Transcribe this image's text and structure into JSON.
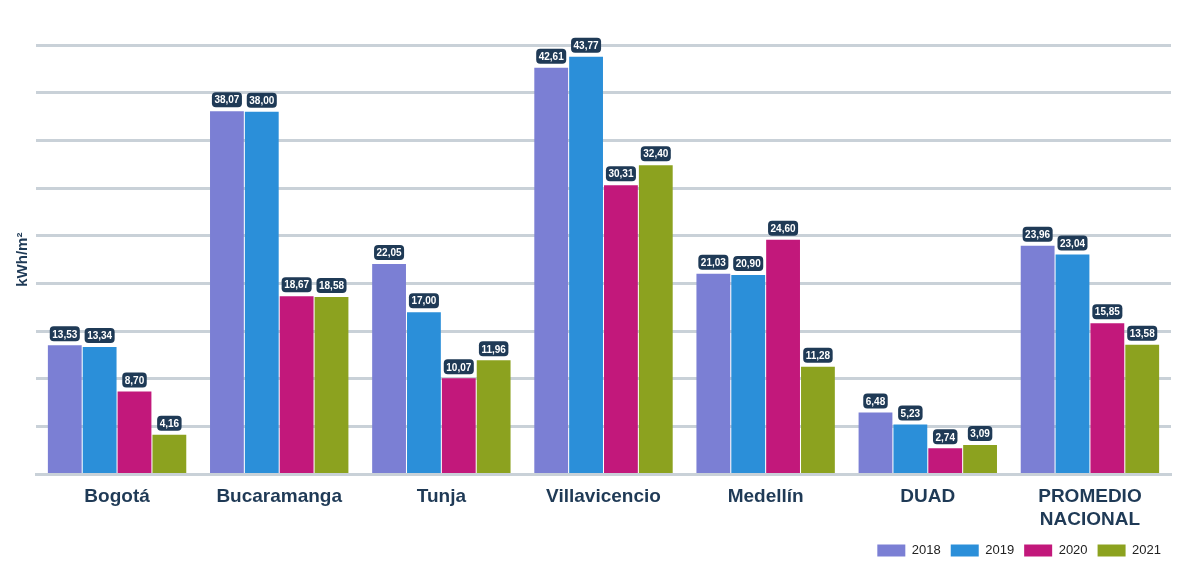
{
  "chart_data": {
    "type": "bar",
    "ylabel": "kWh/m²",
    "categories": [
      "Bogotá",
      "Bucaramanga",
      "Tunja",
      "Villavicencio",
      "Medellín",
      "DUAD",
      "PROMEDIO NACIONAL"
    ],
    "series": [
      {
        "name": "2018",
        "color": "#7b7fd4",
        "values": [
          13.53,
          38.07,
          22.05,
          42.61,
          21.03,
          6.48,
          23.96
        ],
        "value_labels": [
          "13,53",
          "38,07",
          "22,05",
          "42,61",
          "21,03",
          "6,48",
          "23,96"
        ]
      },
      {
        "name": "2019",
        "color": "#2b8fd9",
        "values": [
          13.34,
          38.0,
          17.0,
          43.77,
          20.9,
          5.23,
          23.04
        ],
        "value_labels": [
          "13,34",
          "38,00",
          "17,00",
          "43,77",
          "20,90",
          "5,23",
          "23,04"
        ]
      },
      {
        "name": "2020",
        "color": "#c2187b",
        "values": [
          8.7,
          18.67,
          10.07,
          30.31,
          24.6,
          2.74,
          15.85
        ],
        "value_labels": [
          "8,70",
          "18,67",
          "10,07",
          "30,31",
          "24,60",
          "2,74",
          "15,85"
        ]
      },
      {
        "name": "2021",
        "color": "#8ca21f",
        "values": [
          4.16,
          18.58,
          11.96,
          32.4,
          11.28,
          3.09,
          13.58
        ],
        "value_labels": [
          "4,16",
          "18,58",
          "11,96",
          "32,40",
          "11,28",
          "3,09",
          "13,58"
        ]
      }
    ],
    "grid": "y",
    "tick_labels": "x",
    "legend": "bottom right"
  }
}
